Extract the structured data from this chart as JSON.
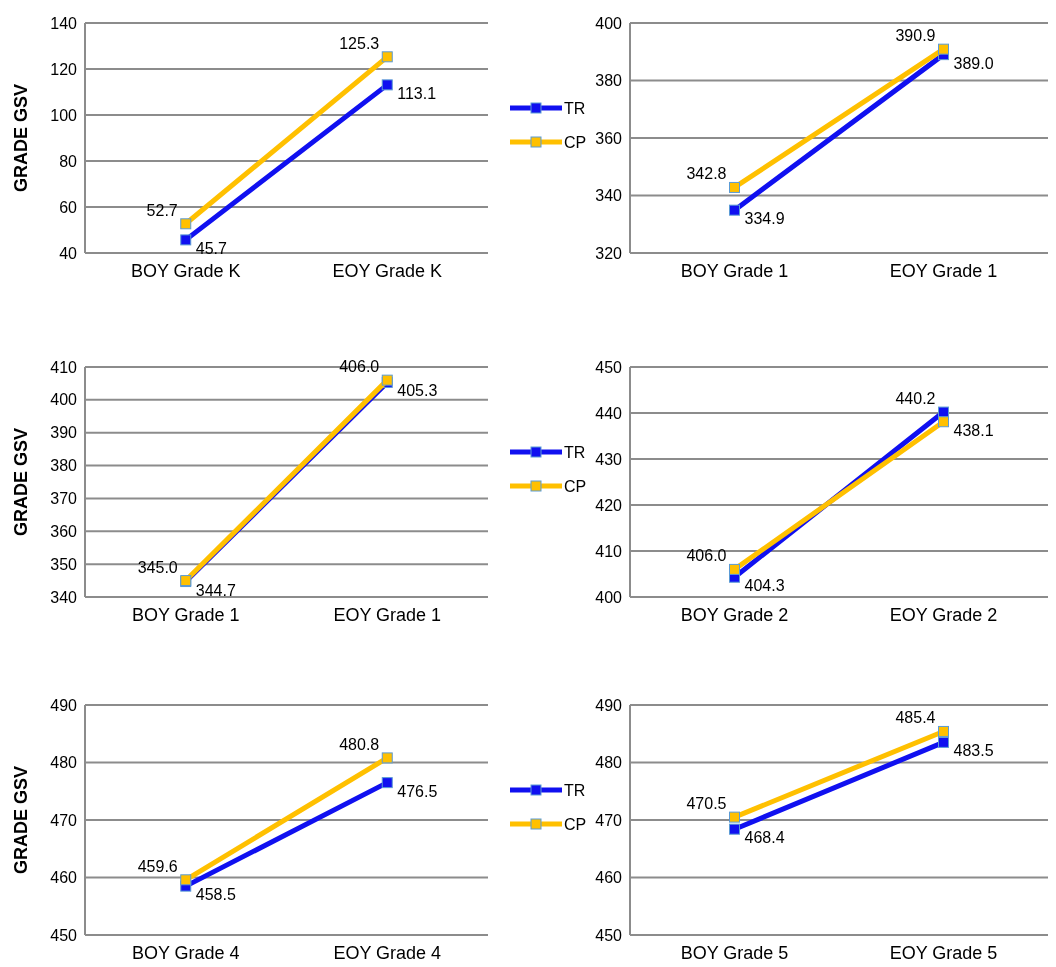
{
  "chart_data": [
    {
      "type": "line",
      "ylabel": "GRADE GSV",
      "categories": [
        "BOY Grade K",
        "EOY Grade K"
      ],
      "ylim": [
        40,
        140
      ],
      "yticks": [
        40,
        60,
        80,
        100,
        120,
        140
      ],
      "grid": "y",
      "legend": "right",
      "marker": "square",
      "series": [
        {
          "name": "TR",
          "color": "#1010f0",
          "values": [
            45.7,
            113.1
          ],
          "value_labels": [
            "45.7",
            "113.1"
          ]
        },
        {
          "name": "CP",
          "color": "#ffc000",
          "values": [
            52.7,
            125.3
          ],
          "value_labels": [
            "52.7",
            "125.3"
          ]
        }
      ]
    },
    {
      "type": "line",
      "categories": [
        "BOY Grade 1",
        "EOY Grade 1"
      ],
      "ylim": [
        320,
        400
      ],
      "yticks": [
        320,
        340,
        360,
        380,
        400
      ],
      "grid": "y",
      "marker": "square",
      "series": [
        {
          "color": "#1010f0",
          "values": [
            334.9,
            389.0
          ],
          "value_labels": [
            "334.9",
            "389.0"
          ]
        },
        {
          "color": "#ffc000",
          "values": [
            342.8,
            390.9
          ],
          "value_labels": [
            "342.8",
            "390.9"
          ]
        }
      ]
    },
    {
      "type": "line",
      "ylabel": "GRADE GSV",
      "categories": [
        "BOY Grade 1",
        "EOY Grade 1"
      ],
      "ylim": [
        340,
        410
      ],
      "yticks": [
        340,
        350,
        360,
        370,
        380,
        390,
        400,
        410
      ],
      "grid": "y",
      "legend": "right",
      "marker": "square",
      "series": [
        {
          "name": "TR",
          "color": "#1010f0",
          "values": [
            344.7,
            405.3
          ],
          "value_labels": [
            "344.7",
            "405.3"
          ]
        },
        {
          "name": "CP",
          "color": "#ffc000",
          "values": [
            345.0,
            406.0
          ],
          "value_labels": [
            "345.0",
            "406.0"
          ]
        }
      ]
    },
    {
      "type": "line",
      "categories": [
        "BOY Grade 2",
        "EOY Grade 2"
      ],
      "ylim": [
        400,
        450
      ],
      "yticks": [
        400,
        410,
        420,
        430,
        440,
        450
      ],
      "grid": "y",
      "marker": "square",
      "series": [
        {
          "color": "#1010f0",
          "values": [
            404.3,
            440.2
          ],
          "value_labels": [
            "404.3",
            "440.2"
          ]
        },
        {
          "color": "#ffc000",
          "values": [
            406.0,
            438.1
          ],
          "value_labels": [
            "406.0",
            "438.1"
          ]
        }
      ]
    },
    {
      "type": "line",
      "ylabel": "GRADE GSV",
      "categories": [
        "BOY Grade 4",
        "EOY Grade 4"
      ],
      "ylim": [
        450,
        490
      ],
      "yticks": [
        450,
        460,
        470,
        480,
        490
      ],
      "grid": "y",
      "legend": "right",
      "marker": "square",
      "series": [
        {
          "name": "TR",
          "color": "#1010f0",
          "values": [
            458.5,
            476.5
          ],
          "value_labels": [
            "458.5",
            "476.5"
          ]
        },
        {
          "name": "CP",
          "color": "#ffc000",
          "values": [
            459.6,
            480.8
          ],
          "value_labels": [
            "459.6",
            "480.8"
          ]
        }
      ]
    },
    {
      "type": "line",
      "categories": [
        "BOY Grade 5",
        "EOY Grade 5"
      ],
      "ylim": [
        450,
        490
      ],
      "yticks": [
        450,
        460,
        470,
        480,
        490
      ],
      "grid": "y",
      "marker": "square",
      "series": [
        {
          "color": "#1010f0",
          "values": [
            468.4,
            483.5
          ],
          "value_labels": [
            "468.4",
            "483.5"
          ]
        },
        {
          "color": "#ffc000",
          "values": [
            470.5,
            485.4
          ],
          "value_labels": [
            "470.5",
            "485.4"
          ]
        }
      ]
    }
  ]
}
